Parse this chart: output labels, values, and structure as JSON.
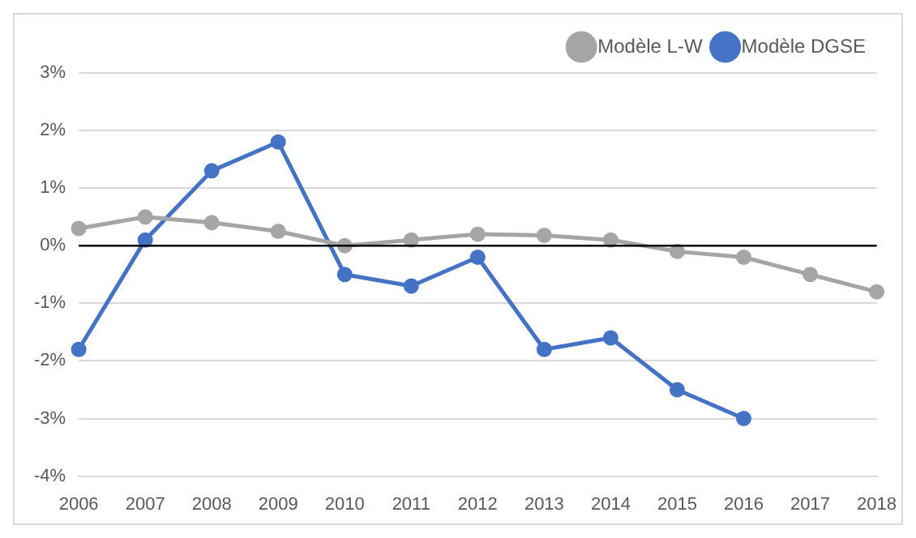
{
  "chart_data": {
    "type": "line",
    "categories": [
      "2006",
      "2007",
      "2008",
      "2009",
      "2010",
      "2011",
      "2012",
      "2013",
      "2014",
      "2015",
      "2016",
      "2017",
      "2018"
    ],
    "series": [
      {
        "name": "Modèle L-W",
        "color": "#a5a5a5",
        "values": [
          0.3,
          0.5,
          0.4,
          0.25,
          0.0,
          0.1,
          0.2,
          0.18,
          0.1,
          -0.1,
          -0.2,
          -0.5,
          -0.8
        ]
      },
      {
        "name": "Modèle DGSE",
        "color": "#4472c4",
        "values": [
          -1.8,
          0.1,
          1.3,
          1.8,
          -0.5,
          -0.7,
          -0.2,
          -1.8,
          -1.6,
          -2.5,
          -3.0,
          null,
          null
        ]
      }
    ],
    "ylim": [
      -4,
      3
    ],
    "yticks": [
      {
        "value": -4,
        "label": "-4%"
      },
      {
        "value": -3,
        "label": "-3%"
      },
      {
        "value": -2,
        "label": "-2%"
      },
      {
        "value": -1,
        "label": "-1%"
      },
      {
        "value": 0,
        "label": "0%"
      },
      {
        "value": 1,
        "label": "1%"
      },
      {
        "value": 2,
        "label": "2%"
      },
      {
        "value": 3,
        "label": "3%"
      }
    ],
    "grid": "y",
    "legend": "top right",
    "marker": "circle",
    "line_style": "solid",
    "ref_lines": [
      {
        "axis": "y",
        "value": 0,
        "color": "#000000"
      }
    ]
  }
}
